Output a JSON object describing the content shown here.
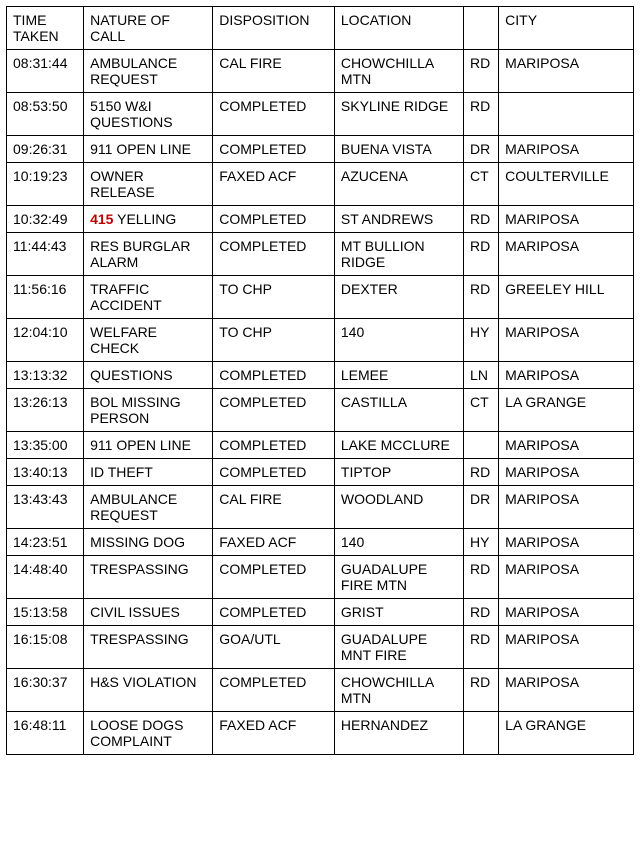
{
  "table": {
    "columns": [
      {
        "key": "time",
        "label": "TIME TAKEN",
        "class": "col-time"
      },
      {
        "key": "nature",
        "label": "NATURE OF CALL",
        "class": "col-nature"
      },
      {
        "key": "disposition",
        "label": "DISPOSITION",
        "class": "col-disp"
      },
      {
        "key": "location",
        "label": "LOCATION",
        "class": "col-loc"
      },
      {
        "key": "suffix",
        "label": "",
        "class": "col-suf"
      },
      {
        "key": "city",
        "label": "CITY",
        "class": "col-city"
      }
    ],
    "rows": [
      {
        "time": "08:31:44",
        "nature": "AMBULANCE REQUEST",
        "disposition": "CAL FIRE",
        "location": "CHOWCHILLA MTN",
        "suffix": "RD",
        "city": "MARIPOSA"
      },
      {
        "time": "08:53:50",
        "nature": "5150 W&I QUESTIONS",
        "disposition": "COMPLETED",
        "location": "SKYLINE RIDGE",
        "suffix": "RD",
        "city": ""
      },
      {
        "time": "09:26:31",
        "nature": "911 OPEN LINE",
        "disposition": "COMPLETED",
        "location": "BUENA VISTA",
        "suffix": "DR",
        "city": "MARIPOSA"
      },
      {
        "time": "10:19:23",
        "nature": "OWNER RELEASE",
        "disposition": "FAXED ACF",
        "location": "AZUCENA",
        "suffix": "CT",
        "city": "COULTERVILLE"
      },
      {
        "time": "10:32:49",
        "nature_highlight_code": "415",
        "nature_rest": " YELLING",
        "disposition": "COMPLETED",
        "location": "ST ANDREWS",
        "suffix": "RD",
        "city": "MARIPOSA"
      },
      {
        "time": "11:44:43",
        "nature": "RES BURGLAR ALARM",
        "disposition": "COMPLETED",
        "location": "MT BULLION RIDGE",
        "suffix": "RD",
        "city": "MARIPOSA"
      },
      {
        "time": "11:56:16",
        "nature": "TRAFFIC ACCIDENT",
        "disposition": "TO CHP",
        "location": "DEXTER",
        "suffix": "RD",
        "city": "GREELEY HILL"
      },
      {
        "time": "12:04:10",
        "nature": "WELFARE CHECK",
        "disposition": "TO CHP",
        "location": "140",
        "suffix": "HY",
        "city": "MARIPOSA"
      },
      {
        "time": "13:13:32",
        "nature": "QUESTIONS",
        "disposition": "COMPLETED",
        "location": "LEMEE",
        "suffix": "LN",
        "city": "MARIPOSA"
      },
      {
        "time": "13:26:13",
        "nature": "BOL MISSING PERSON",
        "disposition": "COMPLETED",
        "location": "CASTILLA",
        "suffix": "CT",
        "city": "LA GRANGE"
      },
      {
        "time": "13:35:00",
        "nature": "911 OPEN LINE",
        "disposition": "COMPLETED",
        "location": "LAKE MCCLURE",
        "suffix": "",
        "city": "MARIPOSA"
      },
      {
        "time": "13:40:13",
        "nature": "ID THEFT",
        "disposition": "COMPLETED",
        "location": "TIPTOP",
        "suffix": "RD",
        "city": "MARIPOSA"
      },
      {
        "time": "13:43:43",
        "nature": "AMBULANCE REQUEST",
        "disposition": "CAL FIRE",
        "location": "WOODLAND",
        "suffix": "DR",
        "city": "MARIPOSA"
      },
      {
        "time": "14:23:51",
        "nature": "MISSING DOG",
        "disposition": "FAXED ACF",
        "location": "140",
        "suffix": "HY",
        "city": "MARIPOSA"
      },
      {
        "time": "14:48:40",
        "nature": "TRESPASSING",
        "disposition": "COMPLETED",
        "location": "GUADALUPE FIRE MTN",
        "suffix": "RD",
        "city": "MARIPOSA"
      },
      {
        "time": "15:13:58",
        "nature": "CIVIL ISSUES",
        "disposition": "COMPLETED",
        "location": "GRIST",
        "suffix": "RD",
        "city": "MARIPOSA"
      },
      {
        "time": "16:15:08",
        "nature": "TRESPASSING",
        "disposition": "GOA/UTL",
        "location": "GUADALUPE MNT FIRE",
        "suffix": "RD",
        "city": "MARIPOSA"
      },
      {
        "time": "16:30:37",
        "nature": "H&S VIOLATION",
        "disposition": "COMPLETED",
        "location": "CHOWCHILLA MTN",
        "suffix": "RD",
        "city": "MARIPOSA"
      },
      {
        "time": "16:48:11",
        "nature": "LOOSE DOGS COMPLAINT",
        "disposition": "FAXED ACF",
        "location": "HERNANDEZ",
        "suffix": "",
        "city": "LA GRANGE"
      }
    ],
    "highlight_color": "#c00000",
    "border_color": "#000000",
    "background_color": "#ffffff",
    "font_family": "Arial",
    "font_size_pt": 11
  }
}
